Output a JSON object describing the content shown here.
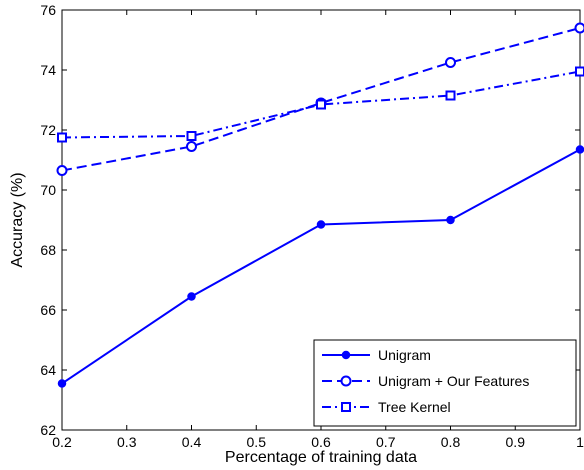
{
  "chart_data": {
    "type": "line",
    "title": "",
    "xlabel": "Percentage of training data",
    "ylabel": "Accuracy (%)",
    "xlim": [
      0.2,
      1.0
    ],
    "ylim": [
      62,
      76
    ],
    "xticks": [
      0.2,
      0.3,
      0.4,
      0.5,
      0.6,
      0.7,
      0.8,
      0.9,
      1.0
    ],
    "xtick_labels": [
      "0.2",
      "0.3",
      "0.4",
      "0.5",
      "0.6",
      "0.7",
      "0.8",
      "0.9",
      "1"
    ],
    "yticks": [
      62,
      64,
      66,
      68,
      70,
      72,
      74,
      76
    ],
    "ytick_labels": [
      "62",
      "64",
      "66",
      "68",
      "70",
      "72",
      "74",
      "76"
    ],
    "grid": false,
    "legend_position": "bottom-right",
    "x": [
      0.2,
      0.4,
      0.6,
      0.8,
      1.0
    ],
    "series": [
      {
        "name": "Unigram",
        "values": [
          63.55,
          66.45,
          68.85,
          69.0,
          71.35
        ],
        "color": "#0000ff",
        "dash": "solid",
        "marker": "filled-circle"
      },
      {
        "name": "Unigram + Our Features",
        "values": [
          70.65,
          71.45,
          72.9,
          74.25,
          75.4
        ],
        "color": "#0000ff",
        "dash": "dashed",
        "marker": "open-circle"
      },
      {
        "name": "Tree Kernel",
        "values": [
          71.75,
          71.8,
          72.85,
          73.15,
          73.95
        ],
        "color": "#0000ff",
        "dash": "dash-dot",
        "marker": "open-square"
      }
    ]
  }
}
